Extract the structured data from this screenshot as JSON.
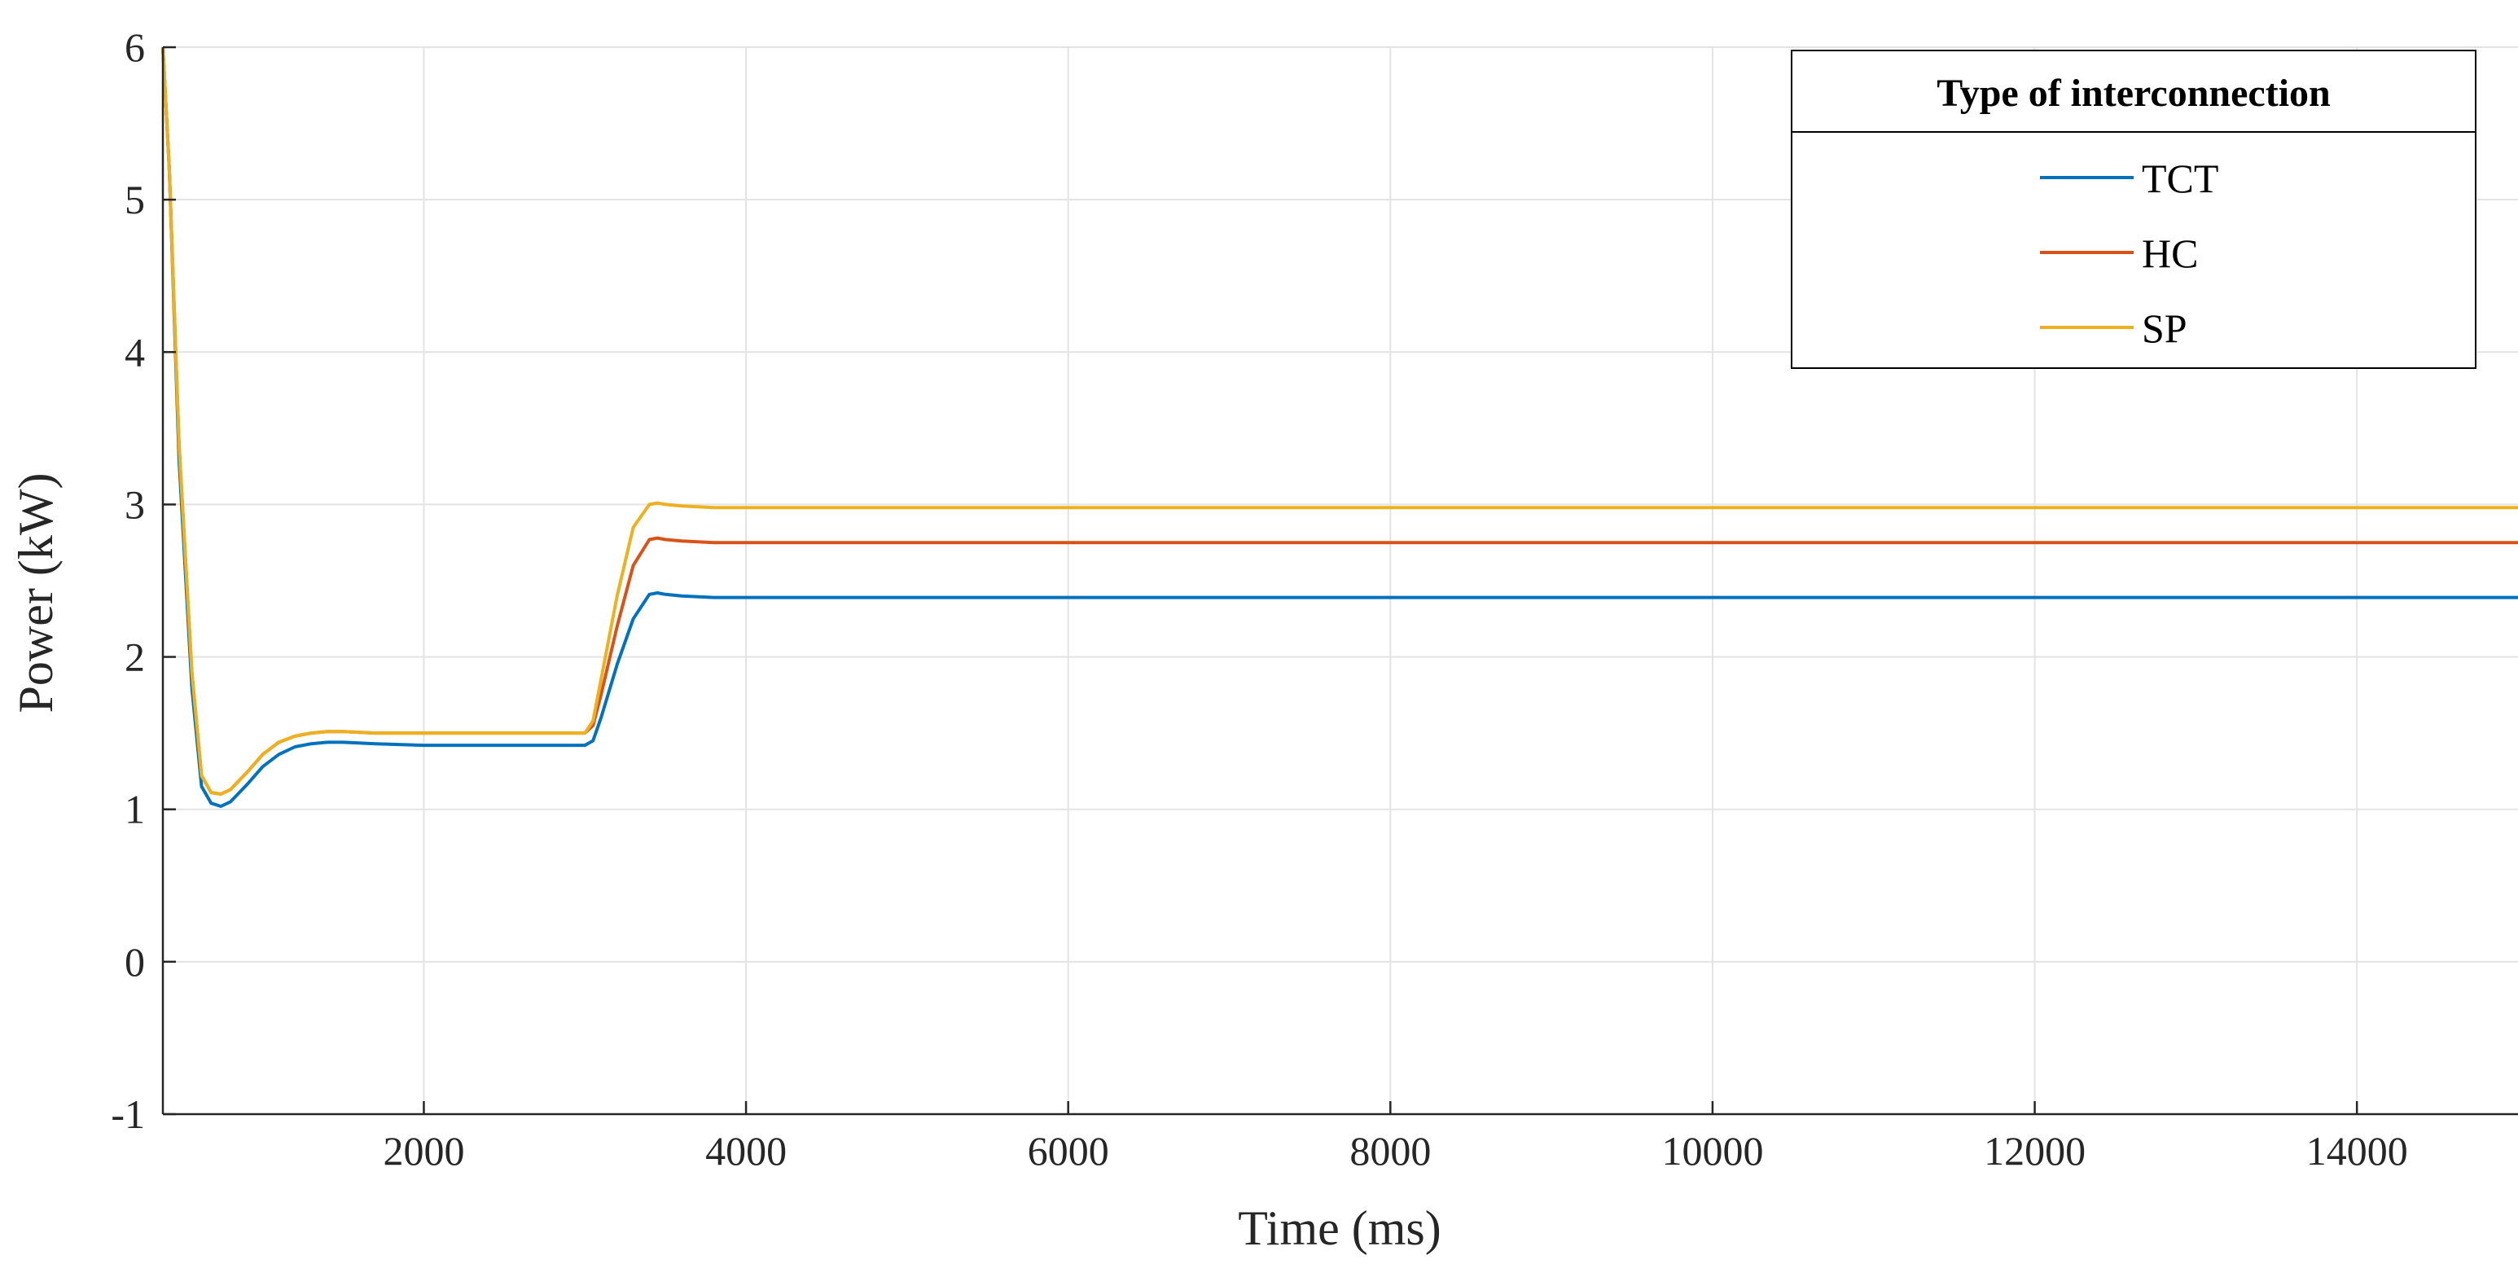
{
  "chart_data": {
    "type": "line",
    "xlabel": "Time (ms)",
    "ylabel": "Power (kW)",
    "xlim": [
      380,
      15000
    ],
    "ylim": [
      -1,
      6
    ],
    "xticks": [
      2000,
      4000,
      6000,
      8000,
      10000,
      12000,
      14000
    ],
    "yticks": [
      -1,
      0,
      1,
      2,
      3,
      4,
      5,
      6
    ],
    "grid": true,
    "legend": {
      "title": "Type of interconnection",
      "placement": "top-right"
    },
    "series": [
      {
        "name": "TCT",
        "color": "#0072BD",
        "x": [
          380,
          420,
          480,
          560,
          620,
          680,
          740,
          800,
          900,
          1000,
          1100,
          1200,
          1300,
          1400,
          1500,
          1700,
          2000,
          2500,
          3000,
          3050,
          3100,
          3200,
          3300,
          3400,
          3450,
          3500,
          3600,
          3800,
          4000,
          6000,
          8000,
          10000,
          12000,
          14000,
          15000
        ],
        "y": [
          6.0,
          5.2,
          3.3,
          1.8,
          1.15,
          1.04,
          1.02,
          1.05,
          1.16,
          1.28,
          1.36,
          1.41,
          1.43,
          1.44,
          1.44,
          1.43,
          1.42,
          1.42,
          1.42,
          1.45,
          1.6,
          1.95,
          2.25,
          2.41,
          2.42,
          2.41,
          2.4,
          2.39,
          2.39,
          2.39,
          2.39,
          2.39,
          2.39,
          2.39,
          2.39
        ]
      },
      {
        "name": "HC",
        "color": "#D95319",
        "x": [
          380,
          420,
          480,
          560,
          620,
          680,
          740,
          800,
          900,
          1000,
          1100,
          1200,
          1300,
          1400,
          1500,
          1700,
          2000,
          2500,
          3000,
          3050,
          3100,
          3200,
          3300,
          3400,
          3450,
          3500,
          3600,
          3800,
          4000,
          6000,
          8000,
          10000,
          12000,
          14000,
          15000
        ],
        "y": [
          6.0,
          5.2,
          3.4,
          1.9,
          1.22,
          1.11,
          1.1,
          1.13,
          1.24,
          1.36,
          1.44,
          1.48,
          1.5,
          1.51,
          1.51,
          1.5,
          1.5,
          1.5,
          1.5,
          1.55,
          1.75,
          2.2,
          2.6,
          2.77,
          2.78,
          2.77,
          2.76,
          2.75,
          2.75,
          2.75,
          2.75,
          2.75,
          2.75,
          2.75,
          2.75
        ]
      },
      {
        "name": "SP",
        "color": "#EDB120",
        "x": [
          380,
          420,
          480,
          560,
          620,
          680,
          740,
          800,
          900,
          1000,
          1100,
          1200,
          1300,
          1400,
          1500,
          1700,
          2000,
          2500,
          3000,
          3050,
          3100,
          3200,
          3300,
          3400,
          3450,
          3500,
          3600,
          3800,
          4000,
          6000,
          8000,
          10000,
          12000,
          14000,
          15000
        ],
        "y": [
          6.0,
          5.2,
          3.4,
          1.9,
          1.22,
          1.11,
          1.1,
          1.13,
          1.24,
          1.36,
          1.44,
          1.48,
          1.5,
          1.51,
          1.51,
          1.5,
          1.5,
          1.5,
          1.5,
          1.58,
          1.85,
          2.4,
          2.85,
          3.0,
          3.01,
          3.0,
          2.99,
          2.98,
          2.98,
          2.98,
          2.98,
          2.98,
          2.98,
          2.98,
          2.98
        ]
      }
    ]
  }
}
